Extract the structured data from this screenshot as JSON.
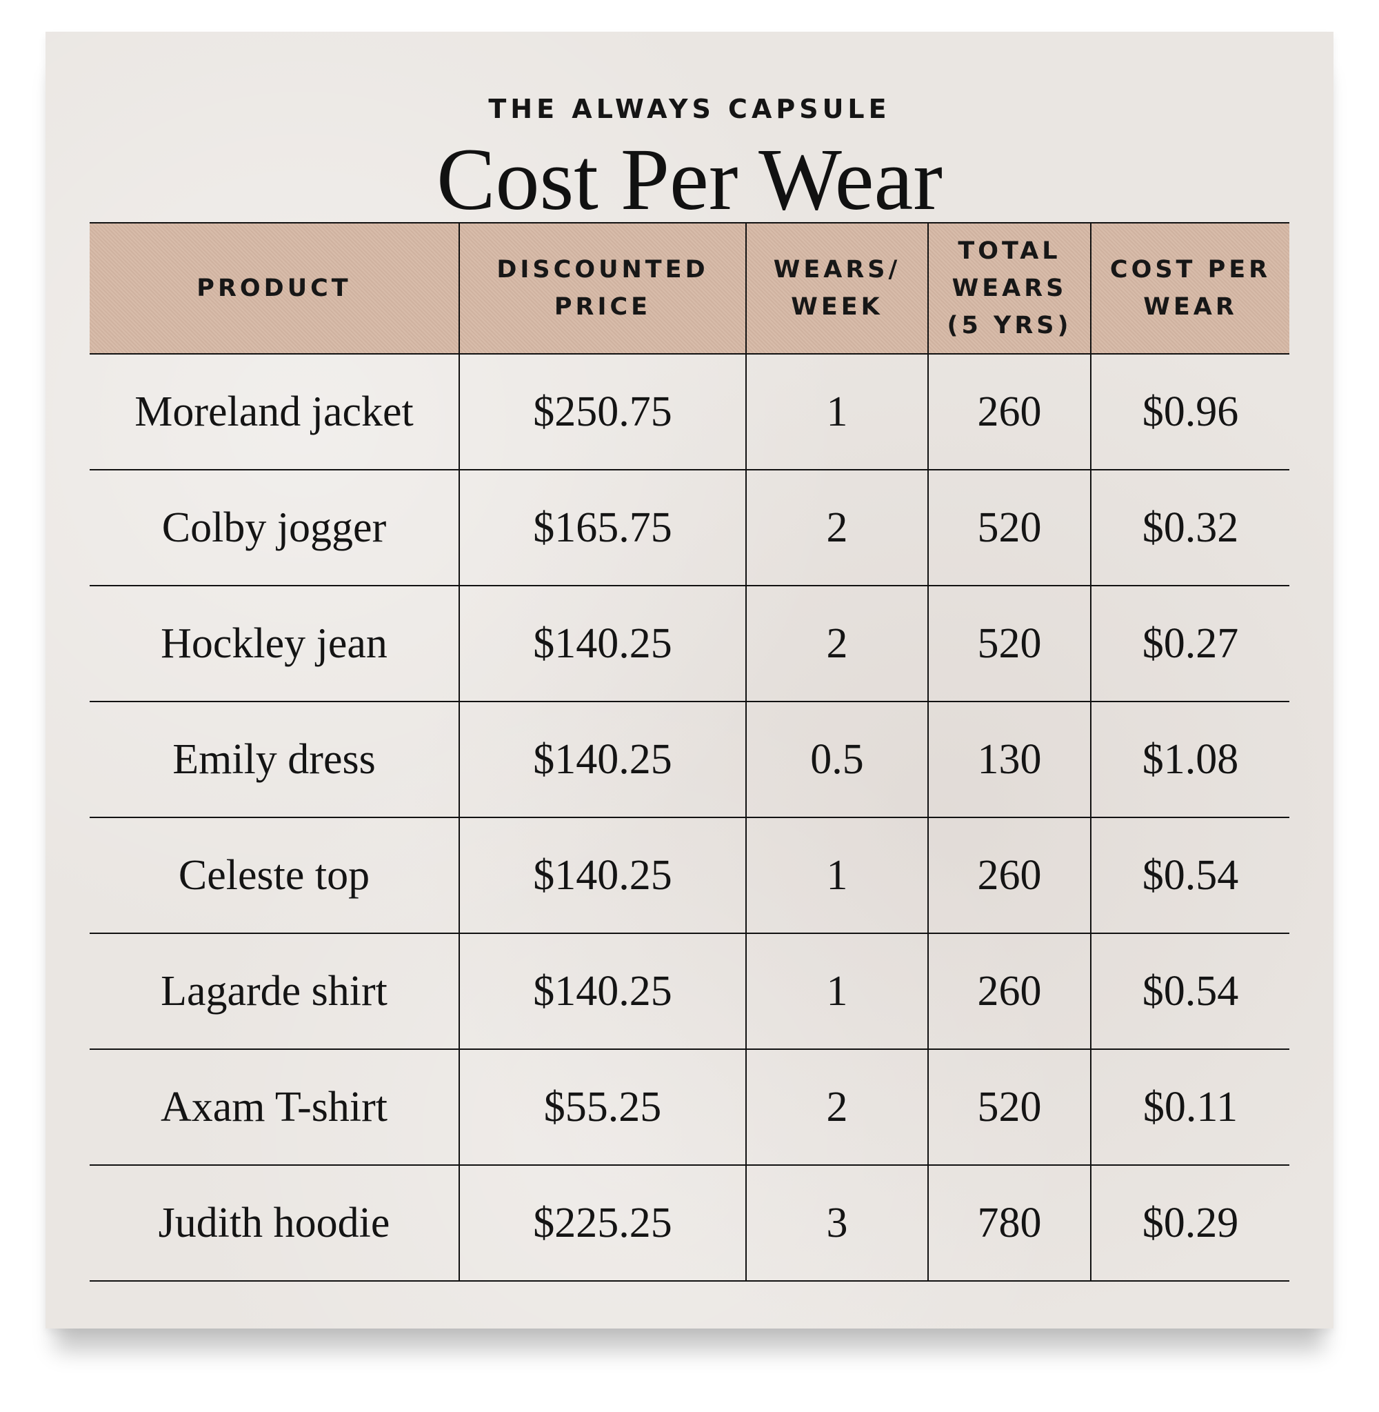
{
  "header": {
    "eyebrow": "THE ALWAYS CAPSULE",
    "title": "Cost Per Wear"
  },
  "colors": {
    "card_background": "#eae6e2",
    "header_row_fill": "#d6b8a5",
    "rule_lines": "#111111"
  },
  "chart_data": {
    "type": "table",
    "title": "Cost Per Wear",
    "subtitle": "THE ALWAYS CAPSULE",
    "columns": [
      "PRODUCT",
      "DISCOUNTED PRICE",
      "WEARS/ WEEK",
      "TOTAL WEARS (5 YRS)",
      "COST PER WEAR"
    ],
    "rows": [
      [
        "Moreland jacket",
        "$250.75",
        "1",
        "260",
        "$0.96"
      ],
      [
        "Colby jogger",
        "$165.75",
        "2",
        "520",
        "$0.32"
      ],
      [
        "Hockley jean",
        "$140.25",
        "2",
        "520",
        "$0.27"
      ],
      [
        "Emily dress",
        "$140.25",
        "0.5",
        "130",
        "$1.08"
      ],
      [
        "Celeste top",
        "$140.25",
        "1",
        "260",
        "$0.54"
      ],
      [
        "Lagarde shirt",
        "$140.25",
        "1",
        "260",
        "$0.54"
      ],
      [
        "Axam T-shirt",
        "$55.25",
        "2",
        "520",
        "$0.11"
      ],
      [
        "Judith hoodie",
        "$225.25",
        "3",
        "780",
        "$0.29"
      ]
    ]
  }
}
